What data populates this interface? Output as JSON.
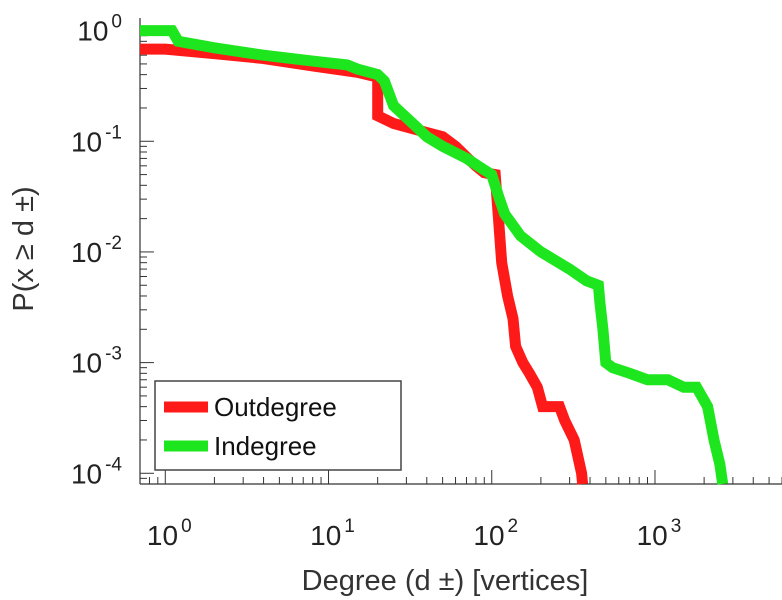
{
  "chart_data": {
    "type": "line",
    "title": "",
    "xlabel": "Degree (d ±) [vertices]",
    "ylabel": "P(x ≥ d ±)",
    "xscale": "log",
    "yscale": "log",
    "xlim": [
      0.7,
      6000
    ],
    "ylim": [
      8e-05,
      1.3
    ],
    "grid": false,
    "legend_position": "bottom-left",
    "x_tick_labels": [
      {
        "value": 1,
        "base": "10",
        "exp": "0"
      },
      {
        "value": 10,
        "base": "10",
        "exp": "1"
      },
      {
        "value": 100,
        "base": "10",
        "exp": "2"
      },
      {
        "value": 1000,
        "base": "10",
        "exp": "3"
      }
    ],
    "y_tick_labels": [
      {
        "value": 1,
        "base": "10",
        "exp": "0"
      },
      {
        "value": 0.1,
        "base": "10",
        "exp": "-1"
      },
      {
        "value": 0.01,
        "base": "10",
        "exp": "-2"
      },
      {
        "value": 0.001,
        "base": "10",
        "exp": "-3"
      },
      {
        "value": 0.0001,
        "base": "10",
        "exp": "-4"
      }
    ],
    "series": [
      {
        "name": "Outdegree",
        "color": "#ff1a1a",
        "points": [
          [
            0.7,
            0.68
          ],
          [
            1,
            0.68
          ],
          [
            2,
            0.62
          ],
          [
            4,
            0.56
          ],
          [
            8,
            0.48
          ],
          [
            15,
            0.42
          ],
          [
            20,
            0.38
          ],
          [
            20,
            0.17
          ],
          [
            25,
            0.145
          ],
          [
            30,
            0.135
          ],
          [
            40,
            0.12
          ],
          [
            50,
            0.11
          ],
          [
            60,
            0.09
          ],
          [
            70,
            0.072
          ],
          [
            80,
            0.06
          ],
          [
            90,
            0.052
          ],
          [
            105,
            0.05
          ],
          [
            110,
            0.02
          ],
          [
            115,
            0.008
          ],
          [
            125,
            0.004
          ],
          [
            135,
            0.0025
          ],
          [
            140,
            0.0014
          ],
          [
            155,
            0.001
          ],
          [
            170,
            0.0008
          ],
          [
            190,
            0.0006
          ],
          [
            205,
            0.0004
          ],
          [
            260,
            0.0004
          ],
          [
            280,
            0.0003
          ],
          [
            320,
            0.0002
          ],
          [
            355,
            0.0001
          ],
          [
            360,
            8e-05
          ]
        ]
      },
      {
        "name": "Indegree",
        "color": "#1ee61e",
        "points": [
          [
            0.7,
            1.0
          ],
          [
            1.1,
            1.0
          ],
          [
            1.2,
            0.8
          ],
          [
            2,
            0.7
          ],
          [
            4,
            0.6
          ],
          [
            8,
            0.53
          ],
          [
            13,
            0.49
          ],
          [
            15,
            0.45
          ],
          [
            20,
            0.4
          ],
          [
            22,
            0.35
          ],
          [
            25,
            0.21
          ],
          [
            28,
            0.18
          ],
          [
            32,
            0.15
          ],
          [
            40,
            0.11
          ],
          [
            50,
            0.09
          ],
          [
            70,
            0.07
          ],
          [
            90,
            0.055
          ],
          [
            100,
            0.05
          ],
          [
            110,
            0.032
          ],
          [
            120,
            0.022
          ],
          [
            150,
            0.014
          ],
          [
            200,
            0.01
          ],
          [
            300,
            0.007
          ],
          [
            380,
            0.0055
          ],
          [
            450,
            0.005
          ],
          [
            460,
            0.0035
          ],
          [
            480,
            0.002
          ],
          [
            500,
            0.001
          ],
          [
            550,
            0.0009
          ],
          [
            700,
            0.0008
          ],
          [
            900,
            0.0007
          ],
          [
            1200,
            0.0007
          ],
          [
            1500,
            0.0006
          ],
          [
            1800,
            0.0006
          ],
          [
            2100,
            0.0004
          ],
          [
            2300,
            0.0002
          ],
          [
            2500,
            0.00012
          ],
          [
            2600,
            8e-05
          ]
        ]
      }
    ]
  }
}
